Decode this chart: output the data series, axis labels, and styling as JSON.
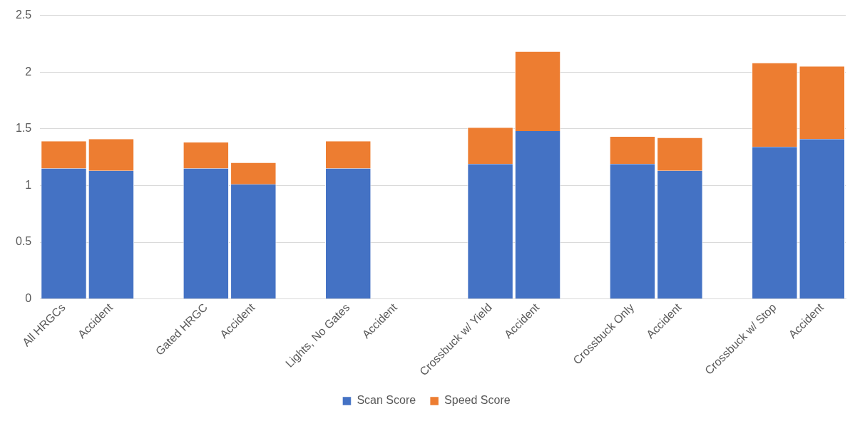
{
  "chart_data": {
    "type": "bar",
    "stacked": true,
    "categories": [
      "All HRGCs",
      "Accident",
      null,
      "Gated HRGC",
      "Accident",
      null,
      "Lights, No Gates",
      "Accident",
      null,
      "Crossbuck w/ Yield",
      "Accident",
      null,
      "Crossbuck Only",
      "Accident",
      null,
      "Crossbuck w/ Stop",
      "Accident"
    ],
    "series": [
      {
        "name": "Scan Score",
        "color": "#4472c4",
        "values": [
          1.15,
          1.13,
          null,
          1.15,
          1.01,
          null,
          1.15,
          null,
          null,
          1.19,
          1.48,
          null,
          1.19,
          1.13,
          null,
          1.34,
          1.41
        ]
      },
      {
        "name": "Speed Score",
        "color": "#ed7d31",
        "values": [
          0.24,
          0.28,
          null,
          0.23,
          0.19,
          null,
          0.24,
          null,
          null,
          0.32,
          0.7,
          null,
          0.24,
          0.29,
          null,
          0.74,
          0.64
        ]
      }
    ],
    "ylim": [
      0,
      2.5
    ],
    "yticks": [
      0,
      0.5,
      1,
      1.5,
      2,
      2.5
    ],
    "grid": "y",
    "legend": "bottom"
  }
}
